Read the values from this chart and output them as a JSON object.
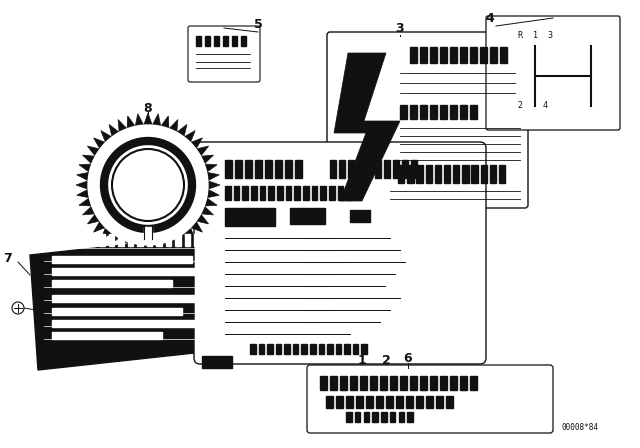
{
  "bg_color": "#ffffff",
  "lc": "#000000",
  "dc": "#111111",
  "figsize": [
    6.4,
    4.48
  ],
  "dpi": 100,
  "watermark": "00008*84"
}
